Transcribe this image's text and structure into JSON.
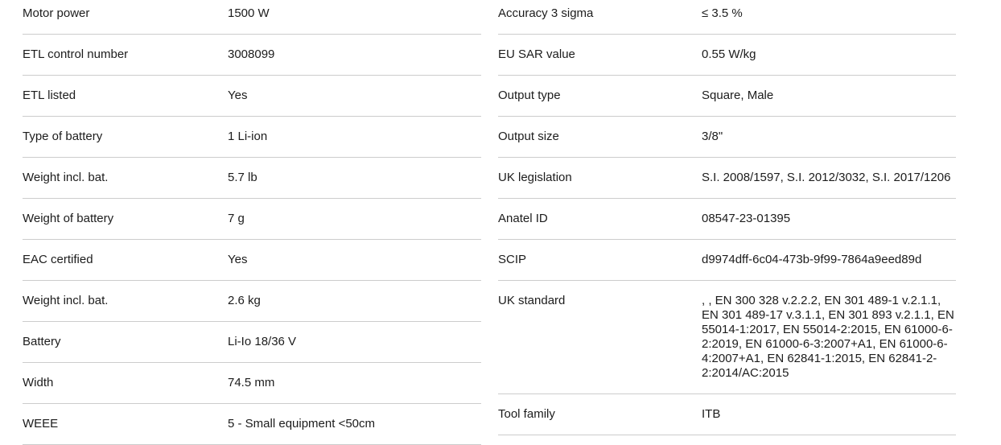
{
  "colors": {
    "text": "#1c1c1c",
    "divider": "#cccccc",
    "background": "#ffffff"
  },
  "spec_table": {
    "left_column": {
      "rows": [
        {
          "label": "Motor power",
          "value": "1500 W"
        },
        {
          "label": "ETL control number",
          "value": "3008099"
        },
        {
          "label": "ETL listed",
          "value": "Yes"
        },
        {
          "label": "Type of battery",
          "value": "1 Li-ion"
        },
        {
          "label": "Weight incl. bat.",
          "value": "5.7 lb"
        },
        {
          "label": "Weight of battery",
          "value": "7 g"
        },
        {
          "label": "EAC certified",
          "value": "Yes"
        },
        {
          "label": "Weight incl. bat.",
          "value": "2.6 kg"
        },
        {
          "label": "Battery",
          "value": "Li-Io 18/36 V"
        },
        {
          "label": "Width",
          "value": "74.5 mm"
        },
        {
          "label": "WEEE",
          "value": "5 - Small equipment <50cm"
        }
      ]
    },
    "right_column": {
      "rows": [
        {
          "label": "Accuracy 3 sigma",
          "value": "≤ 3.5 %"
        },
        {
          "label": "EU SAR value",
          "value": "0.55 W/kg"
        },
        {
          "label": "Output type",
          "value": "Square, Male"
        },
        {
          "label": "Output size",
          "value": "3/8\""
        },
        {
          "label": "UK legislation",
          "value": "S.I. 2008/1597, S.I. 2012/3032, S.I. 2017/1206"
        },
        {
          "label": "Anatel ID",
          "value": "08547-23-01395"
        },
        {
          "label": "SCIP",
          "value": "d9974dff-6c04-473b-9f99-7864a9eed89d"
        },
        {
          "label": "UK standard",
          "value": ", , EN 300 328 v.2.2.2, EN 301 489-1 v.2.1.1, EN 301 489-17 v.3.1.1, EN 301 893 v.2.1.1, EN 55014-1:2017, EN 55014-2:2015, EN 61000-6-2:2019, EN 61000-6-3:2007+A1, EN 61000-6-4:2007+A1, EN 62841-1:2015, EN 62841-2-2:2014/AC:2015"
        },
        {
          "label": "Tool family",
          "value": "ITB"
        }
      ]
    }
  }
}
